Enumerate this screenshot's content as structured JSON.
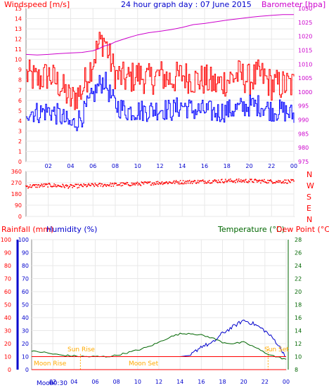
{
  "title": "24 hour graph day : 07 June 2015",
  "colors": {
    "wind": "#ff0000",
    "gust": "#ff0000",
    "wind_avg": "#0000ff",
    "barometer": "#cc00cc",
    "direction": "#ff0000",
    "rainfall": "#ff0000",
    "humidity": "#0000cc",
    "temperature": "#006600",
    "dewpoint": "#ff0000",
    "sun": "#ffaa00",
    "moon": "#ff4400",
    "axis_blue": "#0000cc"
  },
  "x_ticks": [
    "02",
    "04",
    "06",
    "08",
    "10",
    "12",
    "14",
    "16",
    "18",
    "20",
    "22",
    "00"
  ],
  "chart_data": [
    {
      "type": "line",
      "name": "wind-barometer",
      "ylabel_left": "Windspeed [m/s]",
      "ylabel_right": "Barometer [hpa]",
      "y_ticks_left": [
        "0",
        "1",
        "2",
        "3",
        "4",
        "5",
        "6",
        "7",
        "8",
        "9",
        "10",
        "11",
        "12",
        "13",
        "14",
        "15"
      ],
      "y_ticks_right": [
        "975",
        "980",
        "985",
        "990",
        "995",
        "1000",
        "1005",
        "1010",
        "1015",
        "1020",
        "1025",
        "1030"
      ],
      "ylim_left": [
        0,
        15
      ],
      "ylim_right": [
        975,
        1030
      ],
      "x_hours": [
        0,
        1,
        2,
        3,
        4,
        5,
        6,
        6.5,
        7,
        7.5,
        8,
        9,
        10,
        11,
        12,
        13,
        14,
        15,
        16,
        17,
        18,
        19,
        20,
        21,
        22,
        23,
        24
      ],
      "series": [
        {
          "name": "Gust",
          "values": [
            8.5,
            8,
            8.5,
            7.5,
            6,
            7,
            10,
            11.5,
            12,
            10,
            8.5,
            8,
            8.5,
            8,
            8.5,
            8,
            8.5,
            8,
            8,
            7.5,
            8,
            8.5,
            8,
            8.5,
            7.5,
            7.5,
            7.5
          ]
        },
        {
          "name": "Wind",
          "values": [
            5,
            4.8,
            5,
            4.5,
            3.5,
            4.5,
            6.5,
            7.5,
            8,
            6.5,
            5.5,
            5,
            5,
            5,
            5.2,
            5,
            5.5,
            5,
            5,
            4.8,
            5,
            5.2,
            5.5,
            5.5,
            5,
            5,
            4.5
          ]
        },
        {
          "name": "Barometer",
          "values": [
            1013.5,
            1013.3,
            1013.5,
            1013.8,
            1014,
            1014.2,
            1014.8,
            1015.5,
            1016.5,
            1017,
            1018,
            1019.3,
            1020.5,
            1021.3,
            1021.8,
            1022.4,
            1023.2,
            1024.2,
            1024.6,
            1025.2,
            1025.8,
            1026.3,
            1026.8,
            1027.2,
            1027.5,
            1027.8,
            1027.8
          ]
        }
      ]
    },
    {
      "type": "scatter",
      "name": "wind-direction",
      "y_ticks": [
        "360",
        "270",
        "180",
        "90",
        "0"
      ],
      "compass": [
        "N",
        "W",
        "S",
        "E",
        "N"
      ],
      "ylim": [
        0,
        360
      ],
      "x_hours": [
        0,
        2,
        4,
        6,
        8,
        10,
        12,
        14,
        16,
        18,
        20,
        22,
        24
      ],
      "values": [
        240,
        250,
        240,
        250,
        255,
        260,
        270,
        275,
        280,
        285,
        285,
        280,
        280
      ]
    },
    {
      "type": "line",
      "name": "rain-humidity-temp",
      "ylabel_rain": "Rainfall (mm)",
      "ylabel_humidity": "Humidity (%)",
      "ylabel_temp": "Temperature (°C)",
      "ylabel_dew": "Dew Point (°C)",
      "y_ticks_left": [
        "0",
        "10",
        "20",
        "30",
        "40",
        "50",
        "60",
        "70",
        "80",
        "90",
        "100"
      ],
      "y_ticks_right": [
        "8",
        "10",
        "12",
        "14",
        "16",
        "18",
        "20",
        "22",
        "24",
        "26",
        "28"
      ],
      "ylim_left": [
        0,
        100
      ],
      "ylim_right": [
        8,
        28
      ],
      "x_hours": [
        0,
        1,
        2,
        3,
        4,
        5,
        6,
        7,
        8,
        9,
        10,
        11,
        12,
        13,
        14,
        15,
        16,
        17,
        18,
        19,
        20,
        21,
        22,
        23,
        24
      ],
      "series": [
        {
          "name": "Rainfall",
          "values": [
            0,
            0,
            0,
            0,
            0,
            0,
            0,
            0,
            0,
            0,
            0,
            0,
            0,
            0,
            0,
            0,
            0,
            0,
            0,
            0,
            0,
            0,
            0,
            0,
            0
          ]
        },
        {
          "name": "Humidity",
          "values": [
            10,
            10,
            10,
            10,
            10,
            10,
            10,
            10,
            10,
            10,
            10,
            10,
            10,
            10,
            10,
            11,
            18,
            20,
            28,
            33,
            38,
            35,
            30,
            22,
            10
          ]
        },
        {
          "name": "Temperature",
          "values": [
            10.8,
            10.7,
            10.4,
            10.2,
            10.1,
            10,
            10,
            10,
            10.2,
            10.6,
            11,
            11.5,
            12.2,
            13,
            13.5,
            13.6,
            13.3,
            12.9,
            12.2,
            12,
            12.2,
            11.5,
            10.6,
            10,
            9.6
          ]
        },
        {
          "name": "Dew Point",
          "values": [
            10,
            10,
            10,
            10,
            10,
            10,
            10,
            10,
            10,
            10,
            10,
            10,
            10,
            10,
            10,
            10,
            10,
            10,
            10,
            10,
            10,
            10,
            10,
            10,
            10
          ]
        }
      ],
      "annotations": {
        "sun_rise": "Sun Rise",
        "sun_set": "Sun Set",
        "moon_rise": "Moon Rise",
        "moon_set": "Moon Set",
        "moon": "Moon",
        "moon_hours": "00:30"
      }
    }
  ]
}
